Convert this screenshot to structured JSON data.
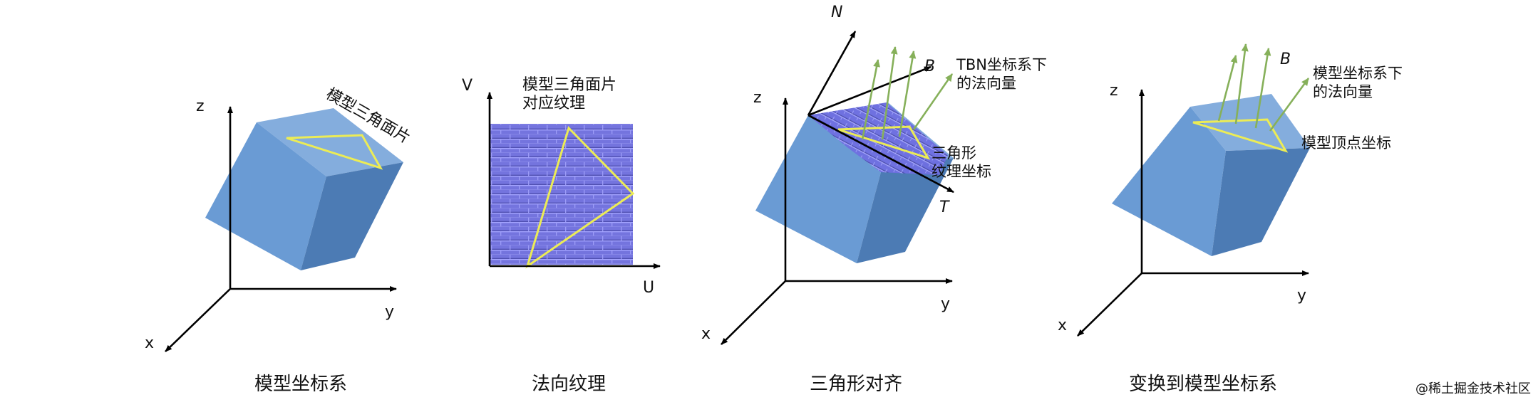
{
  "colors": {
    "cube_front": "#6a9bd4",
    "cube_top": "#84addd",
    "cube_side": "#4c7bb4",
    "triangle": "#ecec55",
    "green_vector": "#86b05a",
    "normal_map": "#7676e0",
    "axis": "#000000"
  },
  "panels": {
    "model_space": {
      "axis_z": "z",
      "axis_y": "y",
      "axis_x": "x",
      "triangle_label": "模型三角面片",
      "caption": "模型坐标系"
    },
    "normal_texture": {
      "axis_v": "V",
      "axis_u": "U",
      "label_line1": "模型三角面片",
      "label_line2": "对应纹理",
      "caption": "法向纹理"
    },
    "triangle_align": {
      "axis_z": "z",
      "axis_y": "y",
      "axis_x": "x",
      "axis_n": "N",
      "axis_b": "B",
      "axis_t": "T",
      "tbn_label_line1": "TBN坐标系下",
      "tbn_label_line2": "的法向量",
      "tri_label_line1": "三角形",
      "tri_label_line2": "纹理坐标",
      "caption": "三角形对齐"
    },
    "to_model_space": {
      "axis_z": "z",
      "axis_y": "y",
      "axis_x": "x",
      "axis_b": "B",
      "normal_label_line1": "模型坐标系下",
      "normal_label_line2": "的法向量",
      "vertex_label": "模型顶点坐标",
      "caption": "变换到模型坐标系"
    }
  },
  "watermark": "@稀土掘金技术社区"
}
